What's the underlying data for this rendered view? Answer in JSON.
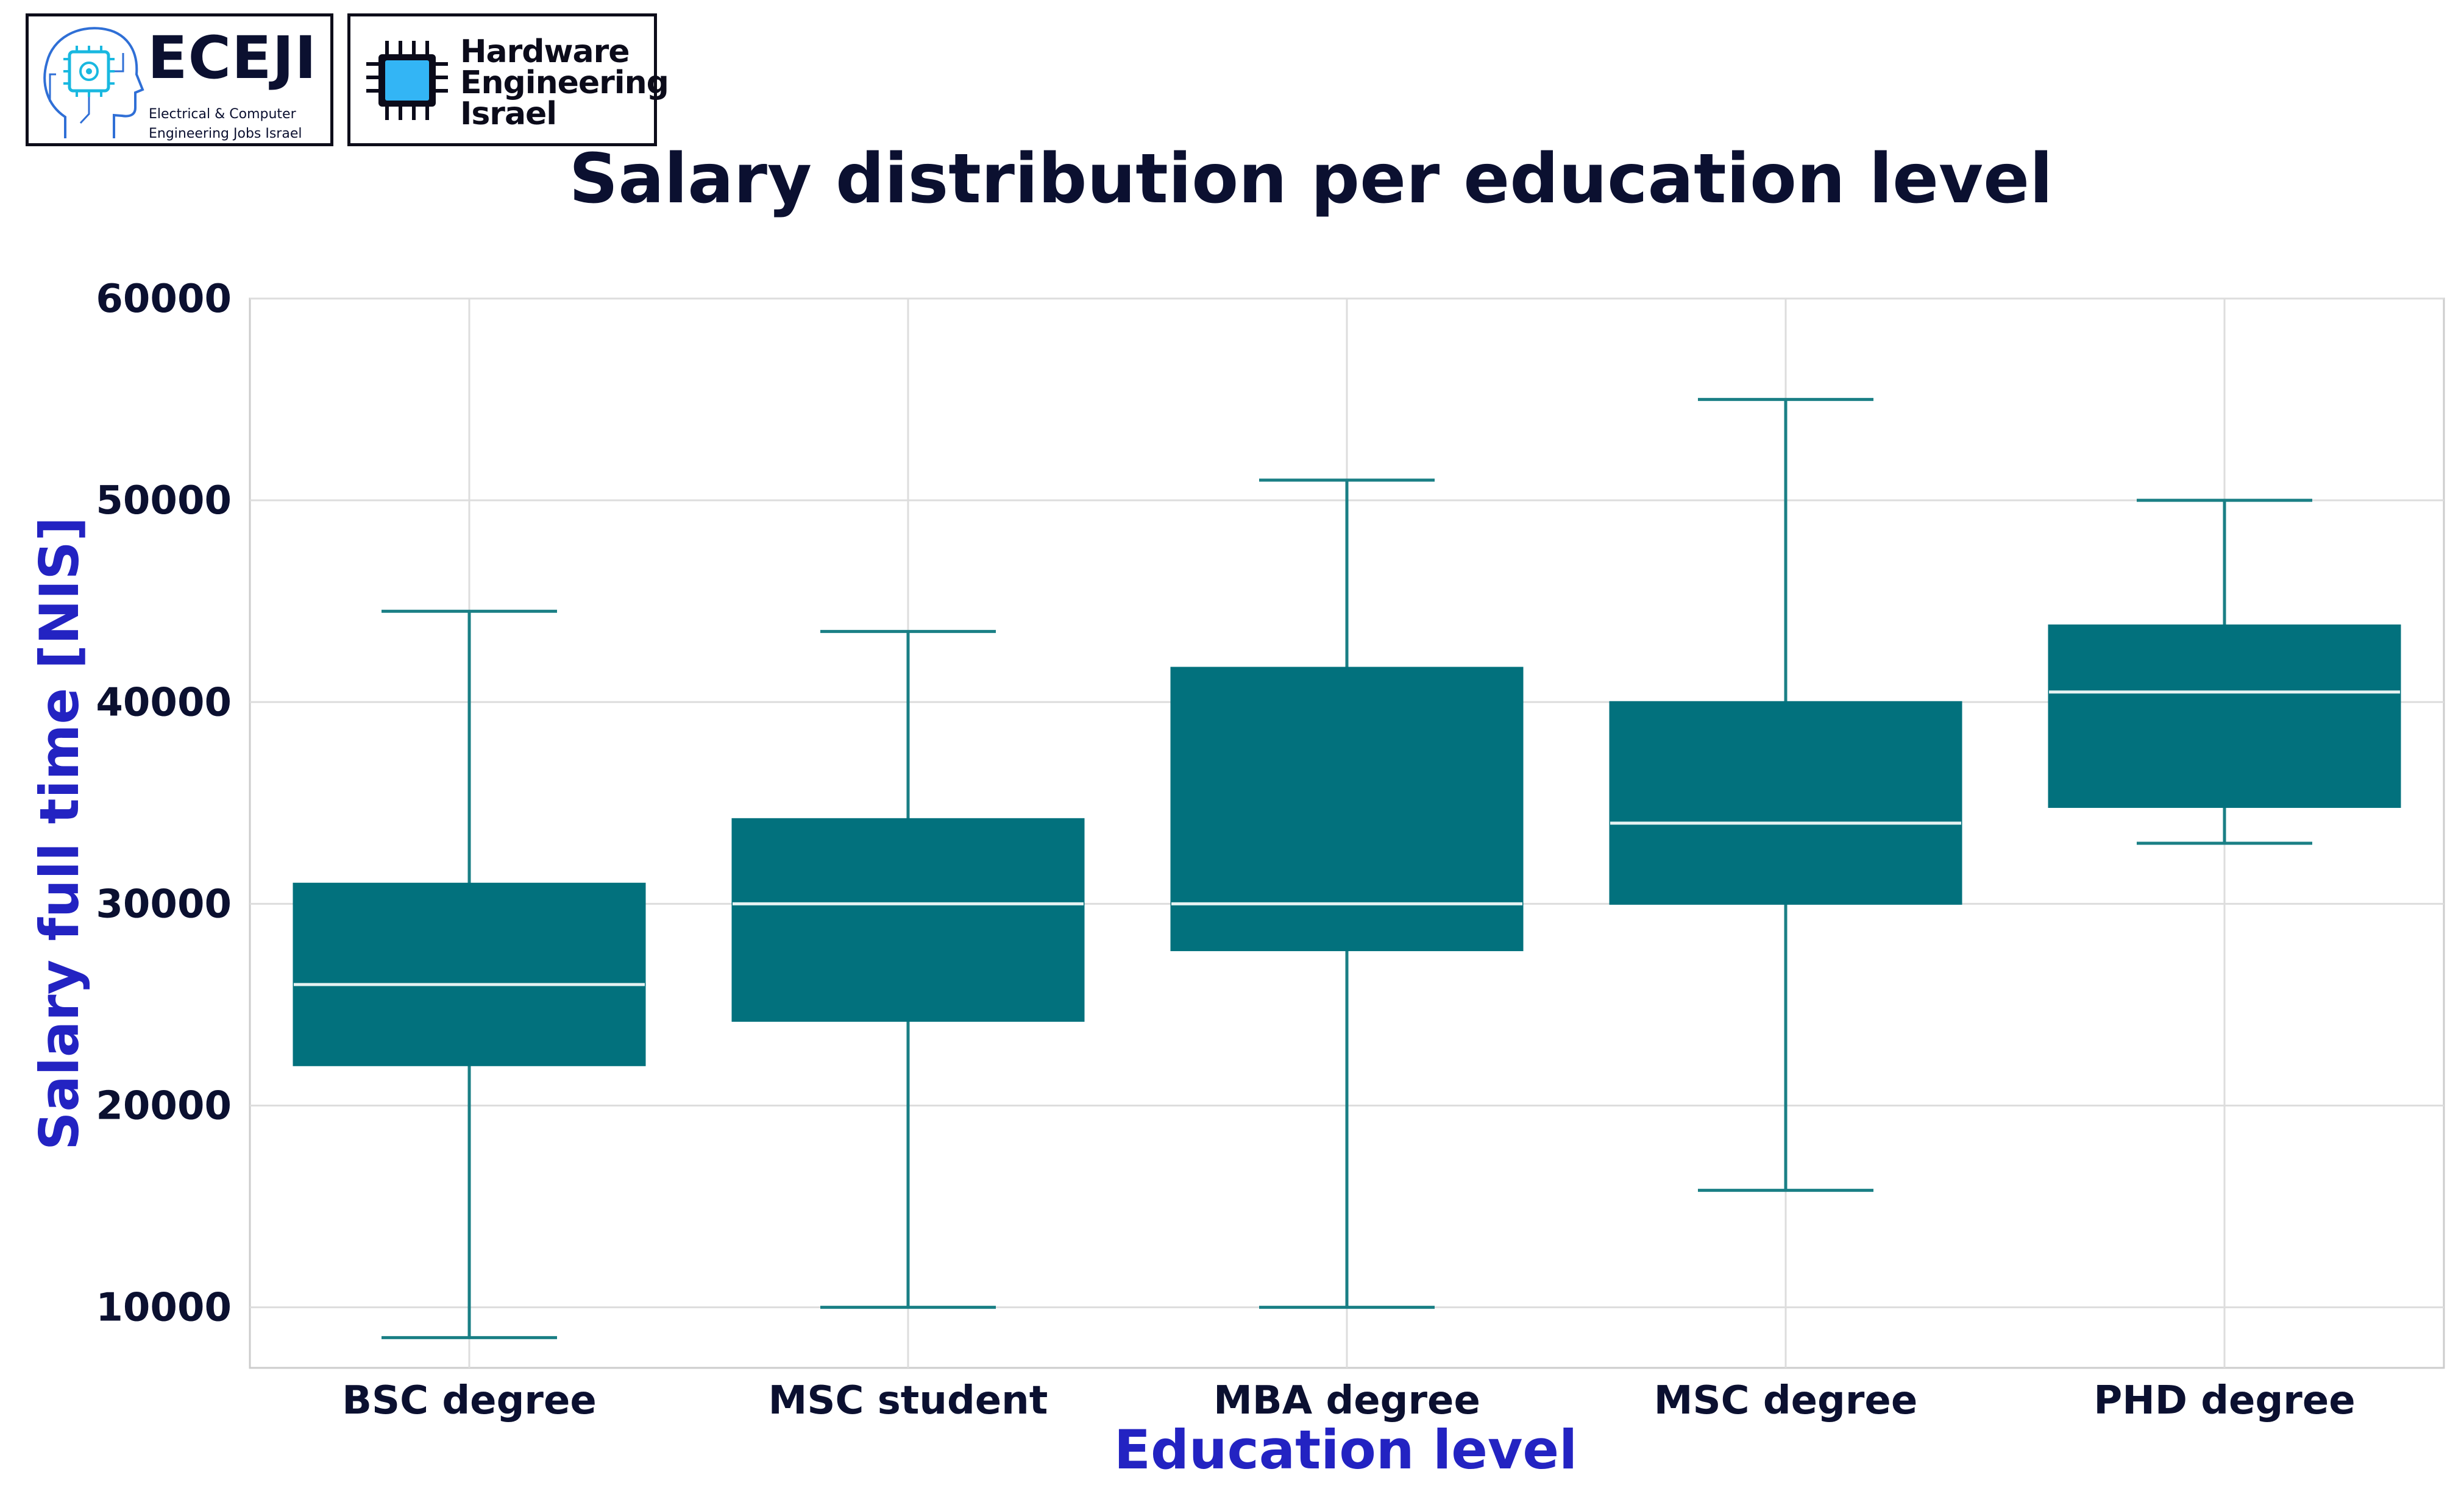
{
  "logos": {
    "eceji": {
      "title": "ECEJI",
      "subtitle_line1": "Electrical  &  Computer",
      "subtitle_line2": "Engineering Jobs Israel"
    },
    "hardware_engineering_israel": {
      "line1": "Hardware",
      "line2": "Engineering",
      "line3": "Israel"
    }
  },
  "colors": {
    "box_fill": "#02717d",
    "whisker": "#1a7f85",
    "median": "#e6f2f2",
    "title": "#0b1030",
    "axis_label": "#2323c2",
    "tick_label": "#0b1030",
    "grid": "#dddddd",
    "chip_blue": "#33b5f5"
  },
  "chart_data": {
    "type": "box",
    "title": "Salary distribution per education level",
    "xlabel": "Education level",
    "ylabel": "Salary full time [NIS]",
    "ylim": [
      7000,
      60000
    ],
    "yticks": [
      10000,
      20000,
      30000,
      40000,
      50000,
      60000
    ],
    "grid": true,
    "categories": [
      "BSC degree",
      "MSC student",
      "MBA degree",
      "MSC degree",
      "PHD degree"
    ],
    "boxes": [
      {
        "category": "BSC degree",
        "whisker_low": 8500,
        "q1": 22000,
        "median": 26000,
        "q3": 31000,
        "whisker_high": 44500
      },
      {
        "category": "MSC student",
        "whisker_low": 10000,
        "q1": 24200,
        "median": 30000,
        "q3": 34200,
        "whisker_high": 43500
      },
      {
        "category": "MBA degree",
        "whisker_low": 10000,
        "q1": 27700,
        "median": 30000,
        "q3": 41700,
        "whisker_high": 51000
      },
      {
        "category": "MSC degree",
        "whisker_low": 15800,
        "q1": 30000,
        "median": 34000,
        "q3": 40000,
        "whisker_high": 55000
      },
      {
        "category": "PHD degree",
        "whisker_low": 33000,
        "q1": 34800,
        "median": 40500,
        "q3": 43800,
        "whisker_high": 50000
      }
    ]
  }
}
